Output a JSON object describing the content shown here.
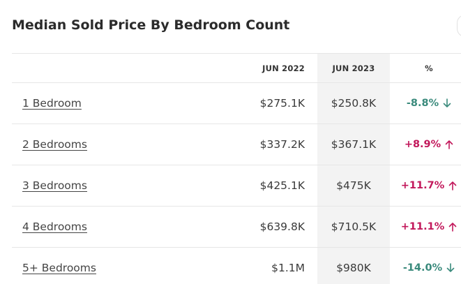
{
  "header": {
    "title": "Median Sold Price By Bedroom Count"
  },
  "table": {
    "columns": [
      "JUN 2022",
      "JUN 2023",
      "%"
    ],
    "rows": [
      {
        "label": "1 Bedroom",
        "jun_2022": "$275.1K",
        "jun_2023": "$250.8K",
        "change": "-8.8%",
        "direction": "down"
      },
      {
        "label": "2 Bedrooms",
        "jun_2022": "$337.2K",
        "jun_2023": "$367.1K",
        "change": "+8.9%",
        "direction": "up"
      },
      {
        "label": "3 Bedrooms",
        "jun_2022": "$425.1K",
        "jun_2023": "$475K",
        "change": "+11.7%",
        "direction": "up"
      },
      {
        "label": "4 Bedrooms",
        "jun_2022": "$639.8K",
        "jun_2023": "$710.5K",
        "change": "+11.1%",
        "direction": "up"
      },
      {
        "label": "5+ Bedrooms",
        "jun_2022": "$1.1M",
        "jun_2023": "$980K",
        "change": "-14.0%",
        "direction": "down"
      }
    ]
  },
  "colors": {
    "down": "#3a8a7c",
    "up": "#c2185b",
    "highlight_column": "#f3f3f3"
  },
  "icons": {
    "down": "arrow-down-icon",
    "up": "arrow-up-icon"
  }
}
